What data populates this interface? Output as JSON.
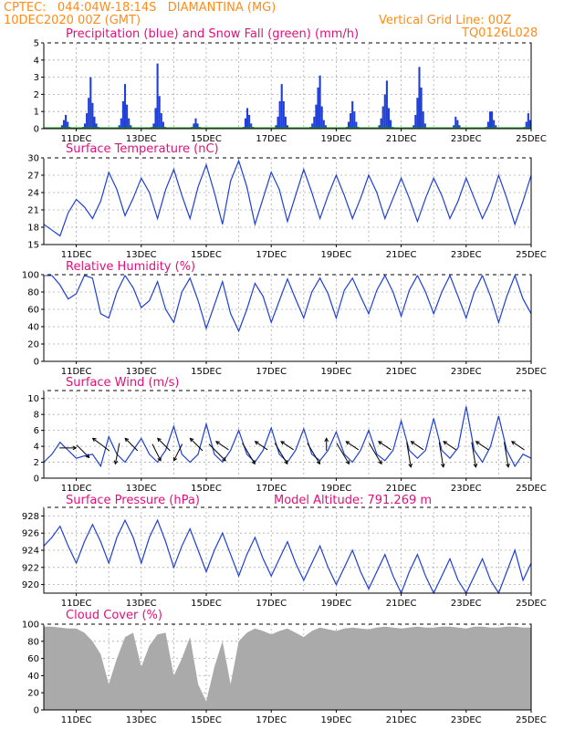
{
  "header": {
    "left_line1": "CPTEC:   044:04W-18:14S   DIAMANTINA (MG)",
    "left_line2": "10DEC2020 00Z (GMT)",
    "right_line1": "Vertical Grid Line: 00Z",
    "right_line2": "TQ0126L028"
  },
  "colors": {
    "header": "#ff8c1a",
    "title": "#e0117a",
    "line": "#1f3fd6",
    "precip": "#1f3fd6",
    "snow": "#1a9a1a",
    "cloud": "#aaaaaa",
    "grid": "#aaaaaa",
    "arrow": "#000000"
  },
  "x_axis": {
    "start": "10DEC2020 00Z",
    "end": "25DEC2020 00Z",
    "tick_labels": [
      "11DEC",
      "13DEC",
      "15DEC",
      "17DEC",
      "19DEC",
      "21DEC",
      "23DEC",
      "25DEC"
    ],
    "vertical_grid": "daily at 00Z"
  },
  "chart_data": [
    {
      "id": "precip",
      "type": "bar",
      "title": "Precipitation (blue) and Snow Fall (green) (mm/h)",
      "ylim": [
        0,
        5
      ],
      "yticks": [
        0,
        1,
        2,
        3,
        4,
        5
      ],
      "grid": true,
      "series": [
        {
          "name": "Precipitation",
          "values": [
            0,
            0,
            0,
            0,
            0,
            0,
            0,
            0,
            0,
            0.2,
            0.5,
            0.8,
            0.4,
            0.1,
            0,
            0,
            0,
            0,
            0,
            0,
            0.1,
            0.3,
            0.9,
            1.8,
            3.0,
            1.5,
            0.7,
            0.3,
            0.1,
            0,
            0,
            0,
            0,
            0,
            0,
            0,
            0,
            0,
            0,
            0.2,
            0.6,
            1.6,
            2.6,
            1.4,
            0.6,
            0.2,
            0,
            0,
            0,
            0,
            0,
            0,
            0,
            0,
            0,
            0,
            0.1,
            0.3,
            1.2,
            3.8,
            1.9,
            0.9,
            0.4,
            0.1,
            0,
            0,
            0,
            0,
            0,
            0,
            0,
            0,
            0,
            0,
            0,
            0,
            0,
            0.1,
            0.3,
            0.6,
            0.3,
            0.1,
            0,
            0,
            0,
            0,
            0,
            0,
            0,
            0,
            0,
            0,
            0,
            0,
            0,
            0,
            0,
            0,
            0,
            0,
            0,
            0,
            0,
            0,
            0.1,
            0.6,
            1.2,
            0.8,
            0.3,
            0.1,
            0,
            0,
            0,
            0,
            0,
            0,
            0,
            0,
            0,
            0,
            0,
            0.2,
            0.7,
            1.6,
            2.6,
            1.6,
            0.7,
            0.2,
            0,
            0,
            0,
            0,
            0,
            0,
            0,
            0,
            0,
            0,
            0,
            0.1,
            0.3,
            0.7,
            1.4,
            2.4,
            3.1,
            1.3,
            0.5,
            0.2,
            0,
            0,
            0,
            0,
            0,
            0,
            0,
            0,
            0,
            0,
            0.1,
            0.4,
            0.9,
            1.6,
            1.0,
            0.4,
            0.1,
            0,
            0,
            0,
            0,
            0,
            0,
            0,
            0,
            0,
            0,
            0.2,
            0.6,
            1.3,
            2.0,
            2.8,
            1.2,
            0.5,
            0.1,
            0,
            0,
            0,
            0,
            0,
            0,
            0,
            0,
            0,
            0,
            0.2,
            0.8,
            1.8,
            3.6,
            2.4,
            1.0,
            0.3,
            0,
            0,
            0,
            0,
            0,
            0,
            0,
            0,
            0,
            0,
            0,
            0,
            0,
            0,
            0.2,
            0.7,
            0.5,
            0.2,
            0,
            0,
            0,
            0,
            0,
            0,
            0,
            0,
            0,
            0,
            0,
            0,
            0,
            0.1,
            0.4,
            1.0,
            1.0,
            0.5,
            0.2,
            0,
            0,
            0,
            0,
            0,
            0,
            0,
            0,
            0,
            0,
            0,
            0,
            0,
            0,
            0.1,
            0.4,
            0.9,
            0.5
          ]
        },
        {
          "name": "Snow Fall",
          "values": []
        }
      ]
    },
    {
      "id": "temperature",
      "type": "line",
      "title": "Surface Temperature (nC)",
      "ylim": [
        15,
        30
      ],
      "yticks": [
        15,
        18,
        21,
        24,
        27,
        30
      ],
      "grid": true,
      "x_days": [
        0,
        0.25,
        0.5,
        0.75,
        1,
        1.25,
        1.5,
        1.75,
        2,
        2.25,
        2.5,
        2.75,
        3,
        3.25,
        3.5,
        3.75,
        4,
        4.25,
        4.5,
        4.75,
        5,
        5.25,
        5.5,
        5.75,
        6,
        6.25,
        6.5,
        6.75,
        7,
        7.25,
        7.5,
        7.75,
        8,
        8.25,
        8.5,
        8.75,
        9,
        9.25,
        9.5,
        9.75,
        10,
        10.25,
        10.5,
        10.75,
        11,
        11.25,
        11.5,
        11.75,
        12,
        12.25,
        12.5,
        12.75,
        13,
        13.25,
        13.5,
        13.75,
        14,
        14.25,
        14.5,
        14.75,
        15
      ],
      "values": [
        18.5,
        17.5,
        16.5,
        20.5,
        22.8,
        21.5,
        19.5,
        22.5,
        27.5,
        24.5,
        20.0,
        23.0,
        26.5,
        24.0,
        19.5,
        24.5,
        28.0,
        23.5,
        19.5,
        25.0,
        28.8,
        24.0,
        18.5,
        26.0,
        29.5,
        25.0,
        18.5,
        23.0,
        27.5,
        24.5,
        19.0,
        23.5,
        28.0,
        24.0,
        19.5,
        23.5,
        27.0,
        23.5,
        19.5,
        23.0,
        27.0,
        24.0,
        19.5,
        23.0,
        26.5,
        23.0,
        19.0,
        23.0,
        26.5,
        23.5,
        19.5,
        22.5,
        26.5,
        23.0,
        19.5,
        22.5,
        27.0,
        23.0,
        18.5,
        22.5,
        27.0
      ]
    },
    {
      "id": "humidity",
      "type": "line",
      "title": "Relative Humidity (%)",
      "ylim": [
        0,
        100
      ],
      "yticks": [
        0,
        20,
        40,
        60,
        80,
        100
      ],
      "grid": true,
      "x_days": [
        0,
        0.25,
        0.5,
        0.75,
        1,
        1.25,
        1.5,
        1.75,
        2,
        2.25,
        2.5,
        2.75,
        3,
        3.25,
        3.5,
        3.75,
        4,
        4.25,
        4.5,
        4.75,
        5,
        5.25,
        5.5,
        5.75,
        6,
        6.25,
        6.5,
        6.75,
        7,
        7.25,
        7.5,
        7.75,
        8,
        8.25,
        8.5,
        8.75,
        9,
        9.25,
        9.5,
        9.75,
        10,
        10.25,
        10.5,
        10.75,
        11,
        11.25,
        11.5,
        11.75,
        12,
        12.25,
        12.5,
        12.75,
        13,
        13.25,
        13.5,
        13.75,
        14,
        14.25,
        14.5,
        14.75,
        15
      ],
      "values": [
        99,
        99,
        88,
        72,
        78,
        99,
        96,
        55,
        50,
        80,
        99,
        85,
        62,
        70,
        92,
        60,
        45,
        80,
        96,
        70,
        38,
        65,
        92,
        55,
        35,
        60,
        90,
        75,
        45,
        70,
        95,
        72,
        50,
        80,
        96,
        78,
        50,
        82,
        96,
        75,
        55,
        82,
        99,
        80,
        52,
        82,
        99,
        80,
        55,
        80,
        99,
        75,
        50,
        80,
        99,
        75,
        45,
        75,
        99,
        72,
        55
      ]
    },
    {
      "id": "wind",
      "type": "line",
      "title": "Surface Wind (m/s)",
      "ylim": [
        0,
        11
      ],
      "yticks": [
        0,
        2,
        4,
        6,
        8,
        10
      ],
      "grid": true,
      "x_days": [
        0,
        0.25,
        0.5,
        0.75,
        1,
        1.25,
        1.5,
        1.75,
        2,
        2.25,
        2.5,
        2.75,
        3,
        3.25,
        3.5,
        3.75,
        4,
        4.25,
        4.5,
        4.75,
        5,
        5.25,
        5.5,
        5.75,
        6,
        6.25,
        6.5,
        6.75,
        7,
        7.25,
        7.5,
        7.75,
        8,
        8.25,
        8.5,
        8.75,
        9,
        9.25,
        9.5,
        9.75,
        10,
        10.25,
        10.5,
        10.75,
        11,
        11.25,
        11.5,
        11.75,
        12,
        12.25,
        12.5,
        12.75,
        13,
        13.25,
        13.5,
        13.75,
        14,
        14.25,
        14.5,
        14.75,
        15
      ],
      "values": [
        2.0,
        3.0,
        4.5,
        3.5,
        2.5,
        2.8,
        3.0,
        1.5,
        5.2,
        3.0,
        2.0,
        3.5,
        5.0,
        3.0,
        2.0,
        3.5,
        6.5,
        3.0,
        2.0,
        3.0,
        6.8,
        3.0,
        2.0,
        3.5,
        6.0,
        3.0,
        2.0,
        3.5,
        6.3,
        3.0,
        2.0,
        3.5,
        6.2,
        3.0,
        2.2,
        3.5,
        5.8,
        3.0,
        2.0,
        3.5,
        6.0,
        3.0,
        2.2,
        3.5,
        7.2,
        3.5,
        2.5,
        3.5,
        7.5,
        3.5,
        2.5,
        3.8,
        9.0,
        3.5,
        2.0,
        4.0,
        7.8,
        3.5,
        1.5,
        3.0,
        2.5
      ]
    },
    {
      "id": "pressure",
      "type": "line",
      "title": "Surface Pressure (hPa)",
      "annotation": "Model Altitude: 791.269 m",
      "ylim": [
        919,
        929
      ],
      "yticks": [
        920,
        922,
        924,
        926,
        928
      ],
      "grid": true,
      "x_days": [
        0,
        0.25,
        0.5,
        0.75,
        1,
        1.25,
        1.5,
        1.75,
        2,
        2.25,
        2.5,
        2.75,
        3,
        3.25,
        3.5,
        3.75,
        4,
        4.25,
        4.5,
        4.75,
        5,
        5.25,
        5.5,
        5.75,
        6,
        6.25,
        6.5,
        6.75,
        7,
        7.25,
        7.5,
        7.75,
        8,
        8.25,
        8.5,
        8.75,
        9,
        9.25,
        9.5,
        9.75,
        10,
        10.25,
        10.5,
        10.75,
        11,
        11.25,
        11.5,
        11.75,
        12,
        12.25,
        12.5,
        12.75,
        13,
        13.25,
        13.5,
        13.75,
        14,
        14.25,
        14.5,
        14.75,
        15
      ],
      "values": [
        924.5,
        925.5,
        926.8,
        924.5,
        922.5,
        925.0,
        927.0,
        925.0,
        922.5,
        925.5,
        927.5,
        925.5,
        922.5,
        925.5,
        927.5,
        925.0,
        922.0,
        924.5,
        926.5,
        924.0,
        921.5,
        924.0,
        926.0,
        923.5,
        921.0,
        923.5,
        925.5,
        923.0,
        921.0,
        923.0,
        925.0,
        922.5,
        920.5,
        922.5,
        924.5,
        922.0,
        920.0,
        922.0,
        924.0,
        921.5,
        919.5,
        921.5,
        923.5,
        921.0,
        919.0,
        921.5,
        923.5,
        921.0,
        919.0,
        921.0,
        923.0,
        920.5,
        919.0,
        921.0,
        923.0,
        920.5,
        919.0,
        921.5,
        924.0,
        920.5,
        922.5
      ]
    },
    {
      "id": "cloud",
      "type": "area",
      "title": "Cloud Cover (%)",
      "ylim": [
        0,
        100
      ],
      "yticks": [
        0,
        20,
        40,
        60,
        80,
        100
      ],
      "grid": true,
      "x_days": [
        0,
        0.25,
        0.5,
        0.75,
        1,
        1.25,
        1.5,
        1.75,
        2,
        2.25,
        2.5,
        2.75,
        3,
        3.25,
        3.5,
        3.75,
        4,
        4.25,
        4.5,
        4.75,
        5,
        5.25,
        5.5,
        5.75,
        6,
        6.25,
        6.5,
        6.75,
        7,
        7.25,
        7.5,
        7.75,
        8,
        8.25,
        8.5,
        8.75,
        9,
        9.25,
        9.5,
        9.75,
        10,
        10.25,
        10.5,
        10.75,
        11,
        11.25,
        11.5,
        11.75,
        12,
        12.25,
        12.5,
        12.75,
        13,
        13.25,
        13.5,
        13.75,
        14,
        14.25,
        14.5,
        14.75,
        15
      ],
      "values": [
        97,
        97,
        96,
        95,
        95,
        90,
        80,
        65,
        30,
        60,
        85,
        90,
        50,
        75,
        88,
        90,
        40,
        60,
        85,
        30,
        10,
        50,
        80,
        30,
        80,
        90,
        95,
        92,
        88,
        92,
        95,
        90,
        85,
        92,
        96,
        94,
        92,
        95,
        96,
        95,
        94,
        96,
        97,
        96,
        95,
        96,
        97,
        96,
        96,
        97,
        97,
        96,
        95,
        97,
        97,
        96,
        96,
        97,
        97,
        96,
        96
      ]
    }
  ],
  "wind_arrows": [
    {
      "x_day": 0.6,
      "u": 4,
      "v": 0
    },
    {
      "x_day": 1.1,
      "u": 3,
      "v": -3
    },
    {
      "x_day": 1.9,
      "u": -4,
      "v": 3
    },
    {
      "x_day": 2.3,
      "u": -1,
      "v": -5
    },
    {
      "x_day": 2.8,
      "u": -3,
      "v": 3
    },
    {
      "x_day": 3.4,
      "u": 2,
      "v": -4
    },
    {
      "x_day": 3.8,
      "u": -3,
      "v": 3
    },
    {
      "x_day": 4.2,
      "u": -2,
      "v": -4
    },
    {
      "x_day": 4.8,
      "u": -3,
      "v": 3
    },
    {
      "x_day": 5.2,
      "u": 4,
      "v": -4
    },
    {
      "x_day": 5.6,
      "u": -3,
      "v": 2
    },
    {
      "x_day": 6.2,
      "u": 3,
      "v": -5
    },
    {
      "x_day": 6.8,
      "u": -3,
      "v": 2
    },
    {
      "x_day": 7.2,
      "u": 3,
      "v": -5
    },
    {
      "x_day": 7.6,
      "u": -3,
      "v": 2
    },
    {
      "x_day": 8.2,
      "u": 3,
      "v": -5
    },
    {
      "x_day": 8.7,
      "u": 0,
      "v": 3
    },
    {
      "x_day": 9.1,
      "u": 3,
      "v": -5
    },
    {
      "x_day": 9.6,
      "u": -3,
      "v": 2
    },
    {
      "x_day": 10.1,
      "u": 3,
      "v": -5
    },
    {
      "x_day": 10.6,
      "u": -3,
      "v": 2
    },
    {
      "x_day": 11.2,
      "u": 1,
      "v": -6
    },
    {
      "x_day": 11.6,
      "u": -3,
      "v": 2
    },
    {
      "x_day": 12.2,
      "u": 1,
      "v": -6
    },
    {
      "x_day": 12.6,
      "u": -3,
      "v": 2
    },
    {
      "x_day": 13.2,
      "u": 1,
      "v": -6
    },
    {
      "x_day": 13.6,
      "u": -3,
      "v": 2
    },
    {
      "x_day": 14.2,
      "u": 1,
      "v": -6
    },
    {
      "x_day": 14.7,
      "u": -3,
      "v": 2
    }
  ]
}
